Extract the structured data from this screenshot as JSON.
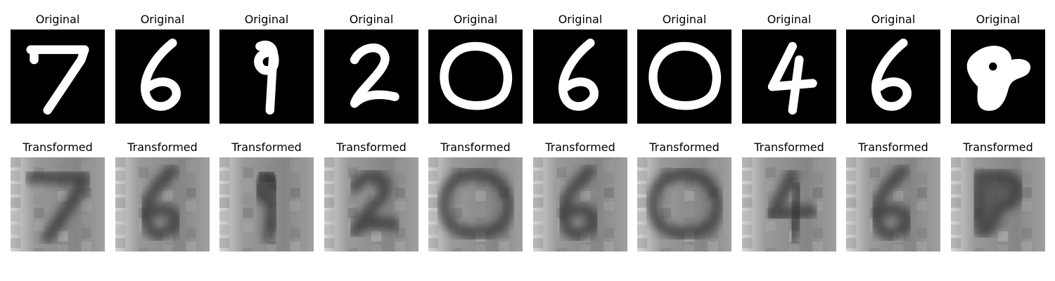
{
  "rows": [
    {
      "title": "Original",
      "panels": [
        {
          "digit": "7"
        },
        {
          "digit": "6"
        },
        {
          "digit": "9"
        },
        {
          "digit": "2"
        },
        {
          "digit": "0"
        },
        {
          "digit": "6"
        },
        {
          "digit": "0"
        },
        {
          "digit": "4"
        },
        {
          "digit": "6"
        },
        {
          "digit": "blob"
        }
      ]
    },
    {
      "title": "Transformed",
      "panels": [
        {
          "digit": "7"
        },
        {
          "digit": "6"
        },
        {
          "digit": "9"
        },
        {
          "digit": "2"
        },
        {
          "digit": "0"
        },
        {
          "digit": "6"
        },
        {
          "digit": "0"
        },
        {
          "digit": "4"
        },
        {
          "digit": "6"
        },
        {
          "digit": "blob"
        }
      ]
    }
  ],
  "colors": {
    "original_bg": "#000000",
    "stroke": "#ffffff",
    "transformed_bg": "#8a8a8a",
    "transformed_dark": "#2a2a2a"
  }
}
